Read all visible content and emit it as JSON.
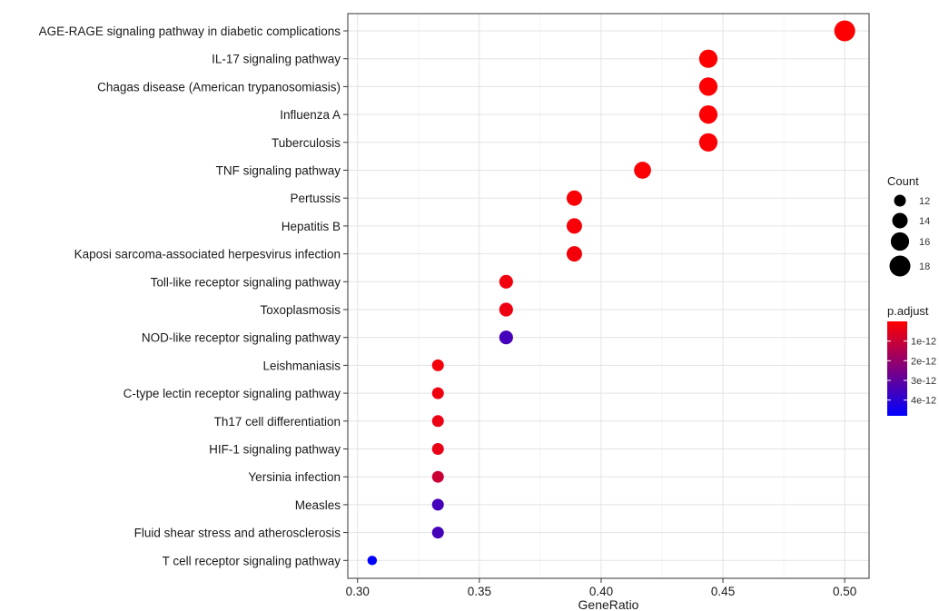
{
  "chart_data": {
    "type": "scatter",
    "title": "",
    "xlabel": "GeneRatio",
    "ylabel": "",
    "xlim": [
      0.296,
      0.51
    ],
    "xticks": [
      0.3,
      0.35,
      0.4,
      0.45,
      0.5
    ],
    "xtick_labels": [
      "0.30",
      "0.35",
      "0.40",
      "0.45",
      "0.50"
    ],
    "grid": true,
    "legend_position": "right",
    "size_legend": {
      "title": "Count",
      "values": [
        12,
        14,
        16,
        18
      ],
      "labels": [
        "12",
        "14",
        "16",
        "18"
      ]
    },
    "color_legend": {
      "title": "p.adjust",
      "low_color": "#ff0000",
      "high_color": "#0000ff",
      "range": [
        0,
        4.8e-12
      ],
      "ticks": [
        1e-12,
        2e-12,
        3e-12,
        4e-12
      ],
      "tick_labels": [
        "1e-12",
        "2e-12",
        "3e-12",
        "4e-12"
      ]
    },
    "points": [
      {
        "term": "AGE-RAGE signaling pathway in diabetic complications",
        "gene_ratio": 0.5,
        "count": 18,
        "p_adjust": 2e-14
      },
      {
        "term": "IL-17 signaling pathway",
        "gene_ratio": 0.444,
        "count": 16,
        "p_adjust": 3e-14
      },
      {
        "term": "Chagas disease (American trypanosomiasis)",
        "gene_ratio": 0.444,
        "count": 16,
        "p_adjust": 5e-14
      },
      {
        "term": "Influenza A",
        "gene_ratio": 0.444,
        "count": 16,
        "p_adjust": 6e-14
      },
      {
        "term": "Tuberculosis",
        "gene_ratio": 0.444,
        "count": 16,
        "p_adjust": 8e-14
      },
      {
        "term": "TNF signaling pathway",
        "gene_ratio": 0.417,
        "count": 15,
        "p_adjust": 1e-13
      },
      {
        "term": "Pertussis",
        "gene_ratio": 0.389,
        "count": 14,
        "p_adjust": 1.2e-13
      },
      {
        "term": "Hepatitis B",
        "gene_ratio": 0.389,
        "count": 14,
        "p_adjust": 1.5e-13
      },
      {
        "term": "Kaposi sarcoma-associated herpesvirus infection",
        "gene_ratio": 0.389,
        "count": 14,
        "p_adjust": 2e-13
      },
      {
        "term": "Toll-like receptor signaling pathway",
        "gene_ratio": 0.361,
        "count": 13,
        "p_adjust": 2.5e-13
      },
      {
        "term": "Toxoplasmosis",
        "gene_ratio": 0.361,
        "count": 13,
        "p_adjust": 3e-13
      },
      {
        "term": "NOD-like receptor signaling pathway",
        "gene_ratio": 0.361,
        "count": 13,
        "p_adjust": 3.5e-12
      },
      {
        "term": "Leishmaniasis",
        "gene_ratio": 0.333,
        "count": 12,
        "p_adjust": 2e-13
      },
      {
        "term": "C-type lectin receptor signaling pathway",
        "gene_ratio": 0.333,
        "count": 12,
        "p_adjust": 3e-13
      },
      {
        "term": "Th17 cell differentiation",
        "gene_ratio": 0.333,
        "count": 12,
        "p_adjust": 3.5e-13
      },
      {
        "term": "HIF-1 signaling pathway",
        "gene_ratio": 0.333,
        "count": 12,
        "p_adjust": 4e-13
      },
      {
        "term": "Yersinia infection",
        "gene_ratio": 0.333,
        "count": 12,
        "p_adjust": 1e-12
      },
      {
        "term": "Measles",
        "gene_ratio": 0.333,
        "count": 12,
        "p_adjust": 3.5e-12
      },
      {
        "term": "Fluid shear stress and atherosclerosis",
        "gene_ratio": 0.333,
        "count": 12,
        "p_adjust": 3.5e-12
      },
      {
        "term": "T cell receptor signaling pathway",
        "gene_ratio": 0.306,
        "count": 11,
        "p_adjust": 4.8e-12
      }
    ]
  }
}
